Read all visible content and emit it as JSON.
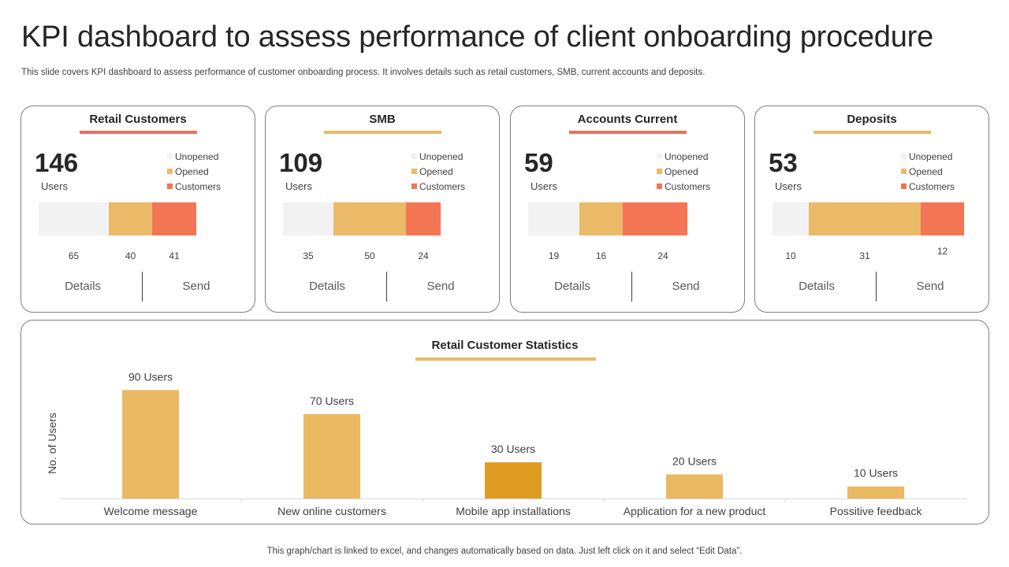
{
  "title": "KPI dashboard to assess performance of client onboarding procedure",
  "subtitle": "This slide covers KPI dashboard to assess performance of customer onboarding process. It involves details such as retail customers, SMB, current accounts and deposits.",
  "colors": {
    "unopened": "#f2f2f2",
    "opened": "#ebba68",
    "customers": "#f47553",
    "accent_red": "#e8715a",
    "accent_yellow": "#eab962",
    "highlight_bar": "#e09b22"
  },
  "legend": {
    "unopened": "Unopened",
    "opened": "Opened",
    "customers": "Customers"
  },
  "cards": [
    {
      "title": "Retail Customers",
      "accent": "#e8715a",
      "total": "146",
      "users_label": "Users",
      "segments": [
        65,
        40,
        41
      ],
      "details_label": "Details",
      "send_label": "Send"
    },
    {
      "title": "SMB",
      "accent": "#eab962",
      "total": "109",
      "users_label": "Users",
      "segments": [
        35,
        50,
        24
      ],
      "details_label": "Details",
      "send_label": "Send"
    },
    {
      "title": "Accounts Current",
      "accent": "#e8715a",
      "total": "59",
      "users_label": "Users",
      "segments": [
        19,
        16,
        24
      ],
      "details_label": "Details",
      "send_label": "Send"
    },
    {
      "title": "Deposits",
      "accent": "#eab962",
      "total": "53",
      "users_label": "Users",
      "segments": [
        10,
        31,
        12
      ],
      "details_label": "Details",
      "send_label": "Send"
    }
  ],
  "chart_data": {
    "type": "bar",
    "title": "Retail Customer Statistics",
    "ylabel": "No. of Users",
    "xlabel": "",
    "categories": [
      "Welcome message",
      "New online customers",
      "Mobile app installations",
      "Application for a new product",
      "Possitive feedback"
    ],
    "values": [
      90,
      70,
      30,
      20,
      10
    ],
    "data_labels": [
      "90 Users",
      "70 Users",
      "30 Users",
      "20 Users",
      "10 Users"
    ],
    "highlight_index": 2,
    "ylim": [
      0,
      100
    ]
  },
  "footer": "This graph/chart is linked to excel,  and changes automatically based on data. Just left click on it and select “Edit Data”."
}
